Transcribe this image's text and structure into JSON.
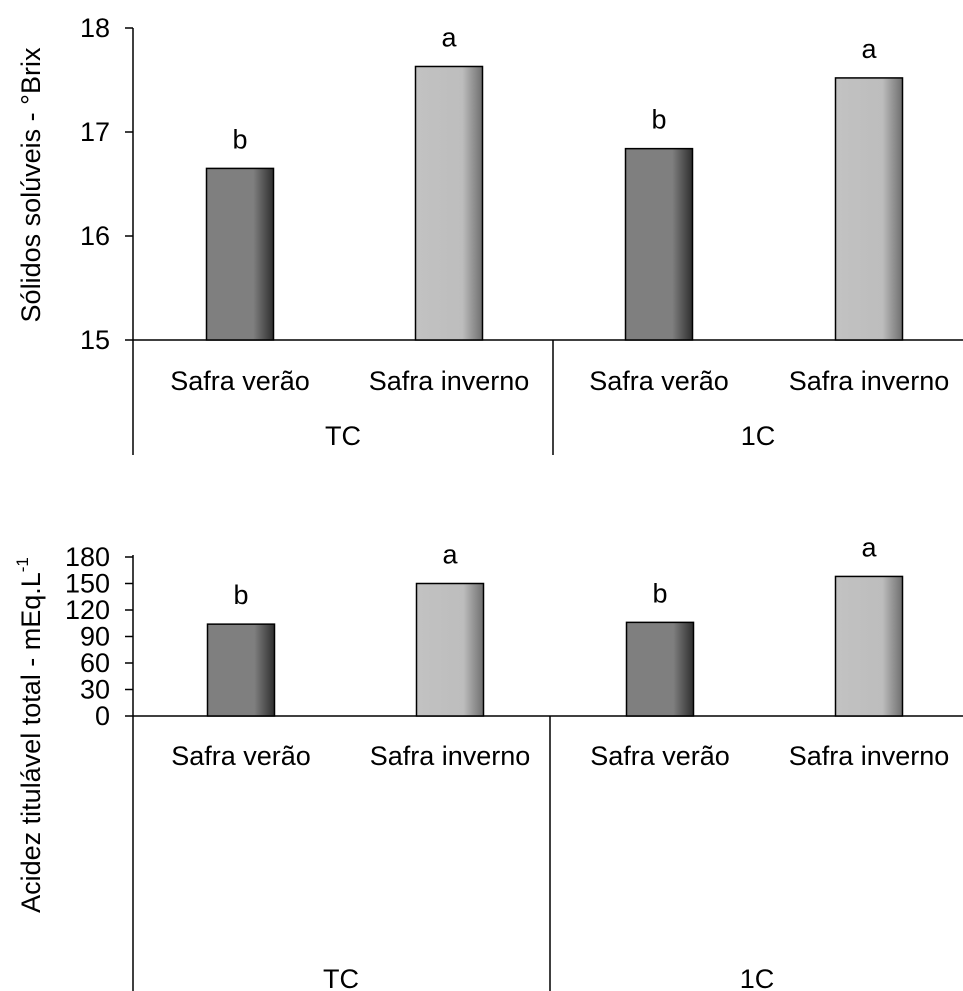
{
  "colors": {
    "series_summer": "#7f7f7f",
    "series_winter": "#c0c0c0",
    "axis": "#000000"
  },
  "chart_data": [
    {
      "type": "bar",
      "title": "",
      "ylabel": "Sólidos solúveis - °Brix",
      "xlabel": "",
      "ylim": [
        15,
        18
      ],
      "yticks": [
        "15",
        "16",
        "17",
        "18"
      ],
      "grid": false,
      "groups": [
        "TC",
        "1C"
      ],
      "categories": [
        "Safra verão",
        "Safra inverno",
        "Safra verão",
        "Safra inverno"
      ],
      "values": [
        16.65,
        17.63,
        16.84,
        17.52
      ],
      "significance": [
        "b",
        "a",
        "b",
        "a"
      ]
    },
    {
      "type": "bar",
      "title": "",
      "ylabel": "Acidez titulável total - mEq.L",
      "ylabel_sup": "-1",
      "xlabel": "",
      "ylim": [
        0,
        180
      ],
      "yticks": [
        "0",
        "30",
        "60",
        "90",
        "120",
        "150",
        "180"
      ],
      "grid": false,
      "groups": [
        "TC",
        "1C"
      ],
      "categories": [
        "Safra verão",
        "Safra inverno",
        "Safra verão",
        "Safra inverno"
      ],
      "values": [
        104,
        150,
        106,
        158
      ],
      "significance": [
        "b",
        "a",
        "b",
        "a"
      ]
    }
  ]
}
